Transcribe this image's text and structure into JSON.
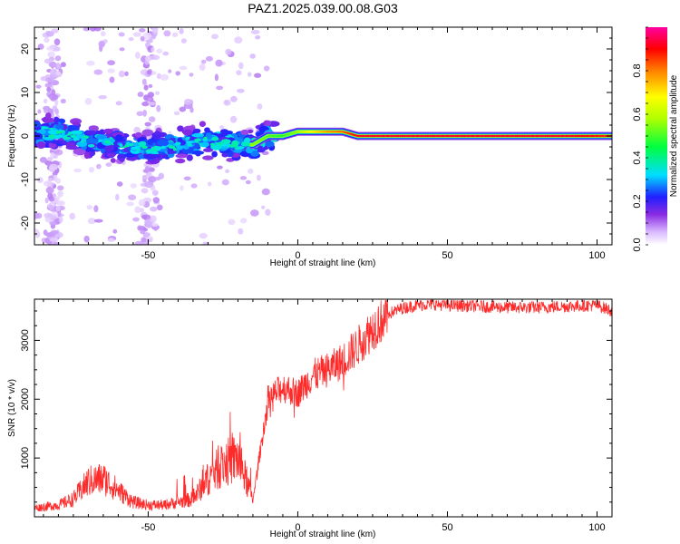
{
  "chart_data": [
    {
      "type": "heatmap",
      "title": "PAZ1.2025.039.00.08.G03",
      "xlabel": "Height of straight line (km)",
      "ylabel": "Frequency (Hz)",
      "xlim": [
        -88,
        105
      ],
      "ylim": [
        -25,
        25
      ],
      "xticks": [
        -50,
        0,
        50,
        100
      ],
      "yticks": [
        -20,
        -10,
        0,
        10,
        20
      ],
      "colorbar": {
        "label": "Normalized spectral amplitude",
        "range": [
          0,
          1
        ],
        "ticks": [
          0.0,
          0.2,
          0.4,
          0.6,
          0.8
        ],
        "tick_labels": [
          "0.0",
          "0.2",
          "0.4",
          "0.6",
          "0.8"
        ]
      },
      "ridge": {
        "x": [
          -88,
          -80,
          -70,
          -60,
          -50,
          -40,
          -30,
          -20,
          -15,
          -10,
          -5,
          0,
          5,
          10,
          15,
          20,
          30,
          50,
          70,
          90,
          105
        ],
        "frequency": [
          0,
          1,
          -1,
          -2,
          -3,
          -2,
          -1,
          -2,
          -2,
          0,
          0,
          1,
          1,
          1,
          1,
          0,
          0,
          0,
          0,
          0,
          0
        ],
        "amplitude": [
          0.15,
          0.2,
          0.25,
          0.25,
          0.2,
          0.3,
          0.35,
          0.4,
          0.6,
          0.55,
          0.5,
          0.6,
          0.75,
          0.85,
          0.9,
          1.0,
          1.0,
          1.0,
          1.0,
          1.0,
          0.95
        ]
      }
    },
    {
      "type": "line",
      "xlabel": "Height of straight line (km)",
      "ylabel": "SNR (10 * v/v)",
      "xlim": [
        -88,
        105
      ],
      "ylim": [
        0,
        3700
      ],
      "xticks": [
        -50,
        0,
        50,
        100
      ],
      "yticks": [
        1000,
        2000,
        3000
      ],
      "color": "#ff2a2a",
      "envelope": {
        "x": [
          -88,
          -80,
          -75,
          -70,
          -65,
          -60,
          -55,
          -50,
          -45,
          -40,
          -35,
          -30,
          -25,
          -20,
          -15,
          -12,
          -10,
          -5,
          0,
          5,
          10,
          15,
          20,
          25,
          30,
          35,
          40,
          45,
          50,
          60,
          70,
          80,
          90,
          100,
          105
        ],
        "y": [
          150,
          200,
          300,
          600,
          650,
          450,
          250,
          200,
          200,
          250,
          300,
          650,
          900,
          1000,
          300,
          1300,
          2000,
          2200,
          2100,
          2400,
          2500,
          2650,
          2900,
          3200,
          3450,
          3550,
          3600,
          3620,
          3600,
          3580,
          3560,
          3560,
          3580,
          3600,
          3500
        ]
      }
    }
  ]
}
